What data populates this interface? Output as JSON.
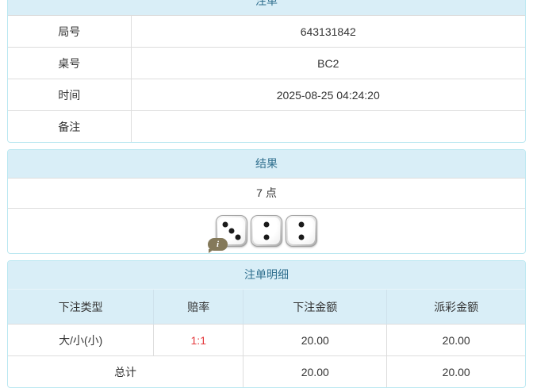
{
  "bet_info": {
    "title": "注单",
    "rows": [
      {
        "label": "局号",
        "value": "643131842"
      },
      {
        "label": "桌号",
        "value": "BC2"
      },
      {
        "label": "时间",
        "value": "2025-08-25 04:24:20"
      },
      {
        "label": "备注",
        "value": ""
      }
    ]
  },
  "result": {
    "title": "结果",
    "points": "7 点",
    "dice": [
      3,
      2,
      2
    ],
    "info_icon": "i"
  },
  "bet_details": {
    "title": "注单明细",
    "columns": [
      "下注类型",
      "赔率",
      "下注金额",
      "派彩金额"
    ],
    "rows": [
      {
        "bet_type": "大/小(小)",
        "odds": "1:1",
        "bet_amount": "20.00",
        "payout_amount": "20.00"
      }
    ],
    "total": {
      "label": "总计",
      "bet_amount": "20.00",
      "payout_amount": "20.00"
    }
  },
  "colors": {
    "heading_bg": "#d9eef7",
    "heading_text": "#31708f",
    "panel_border": "#bce8f1",
    "row_border": "#dddddd",
    "odds_red": "#e4393c",
    "info_badge": "#84795a",
    "pip": "#1a1a1a"
  }
}
